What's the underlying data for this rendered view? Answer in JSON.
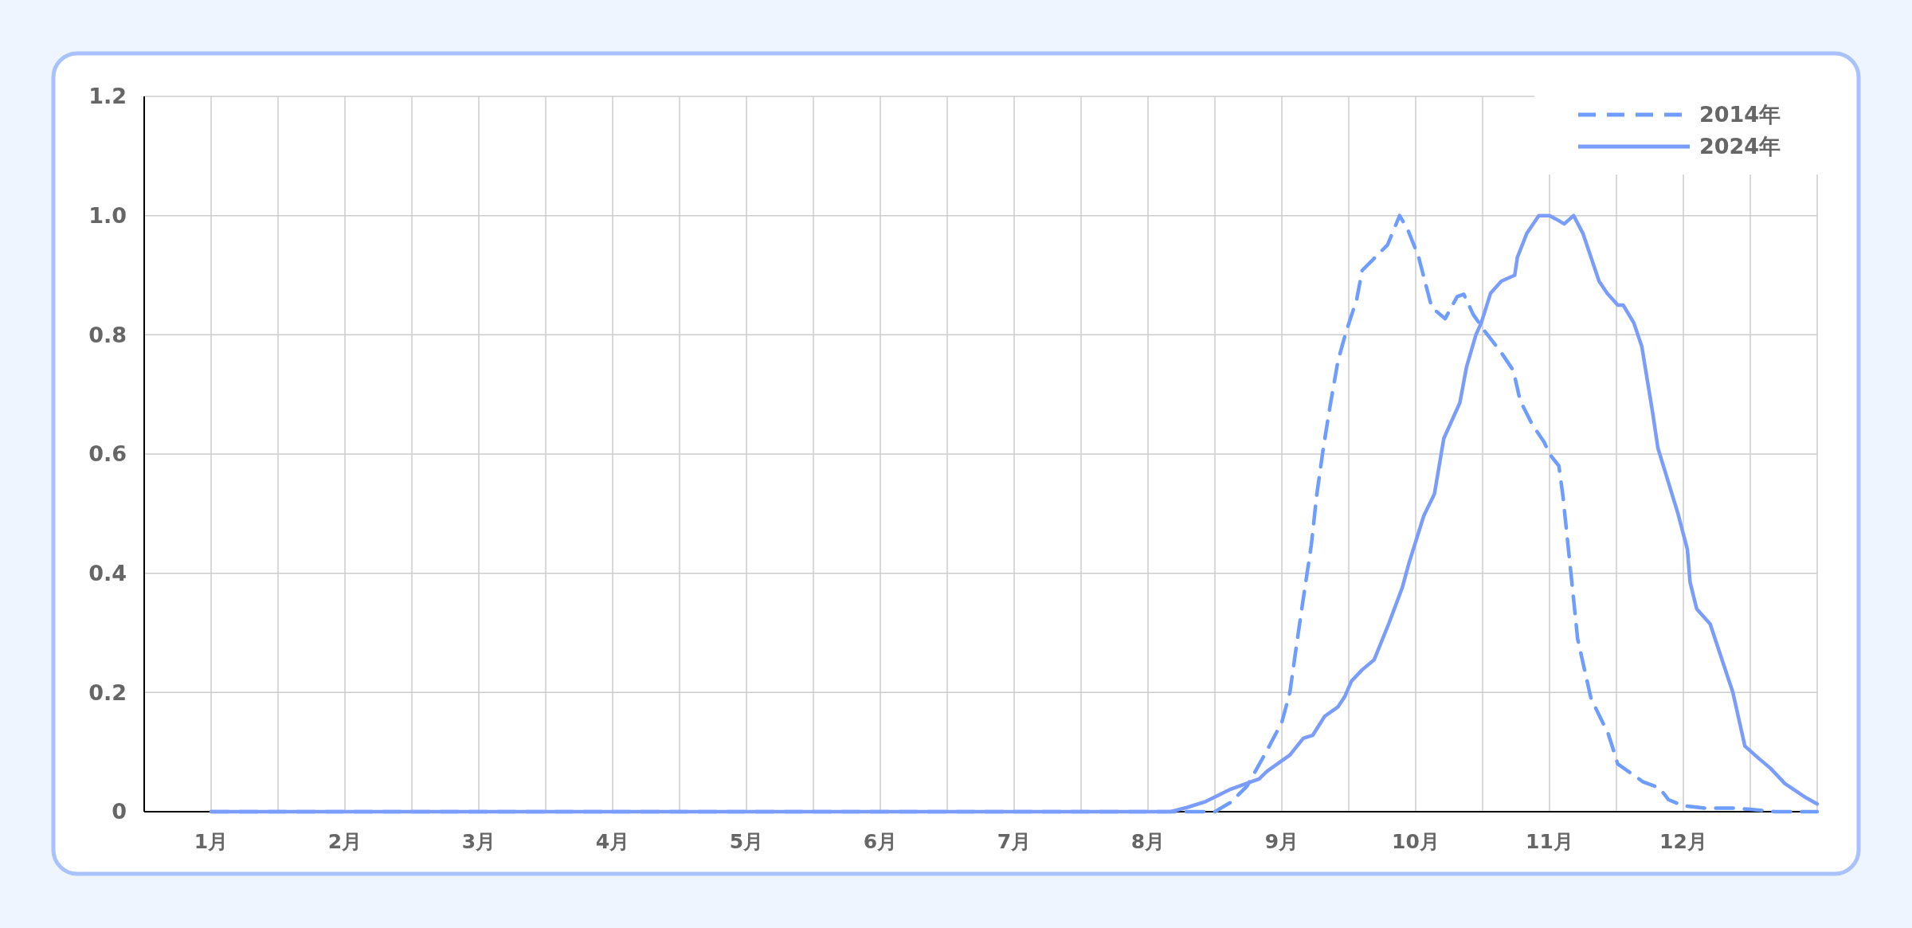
{
  "chart_data": {
    "type": "line",
    "xlim": [
      0.5,
      13
    ],
    "ylim": [
      0,
      1.2
    ],
    "xticks": [
      {
        "value": 1,
        "label": "1月"
      },
      {
        "value": 1.5,
        "label": null
      },
      {
        "value": 2,
        "label": "2月"
      },
      {
        "value": 2.5,
        "label": null
      },
      {
        "value": 3,
        "label": "3月"
      },
      {
        "value": 3.5,
        "label": null
      },
      {
        "value": 4,
        "label": "4月"
      },
      {
        "value": 4.5,
        "label": null
      },
      {
        "value": 5,
        "label": "5月"
      },
      {
        "value": 5.5,
        "label": null
      },
      {
        "value": 6,
        "label": "6月"
      },
      {
        "value": 6.5,
        "label": null
      },
      {
        "value": 7,
        "label": "7月"
      },
      {
        "value": 7.5,
        "label": null
      },
      {
        "value": 8,
        "label": "8月"
      },
      {
        "value": 8.5,
        "label": null
      },
      {
        "value": 9,
        "label": "9月"
      },
      {
        "value": 9.5,
        "label": null
      },
      {
        "value": 10,
        "label": "10月"
      },
      {
        "value": 10.5,
        "label": null
      },
      {
        "value": 11,
        "label": "11月"
      },
      {
        "value": 11.5,
        "label": null
      },
      {
        "value": 12,
        "label": "12月"
      },
      {
        "value": 12.5,
        "label": null
      },
      {
        "value": 13,
        "label": null
      }
    ],
    "yticks": [
      0,
      0.2,
      0.4,
      0.6,
      0.8,
      {
        "value": 1,
        "label": "1.0"
      },
      1.2
    ],
    "grid": true,
    "legend": "top right",
    "marker": "none",
    "series": [
      {
        "name": "2014年",
        "color": "#6e9cff",
        "line_style": "dashed",
        "x": [
          1,
          8.5,
          8.62,
          8.74,
          8.88,
          9.0,
          9.06,
          9.11,
          9.16,
          9.22,
          9.26,
          9.31,
          9.36,
          9.42,
          9.48,
          9.56,
          9.6,
          9.68,
          9.79,
          9.88,
          9.94,
          10.02,
          10.12,
          10.22,
          10.31,
          10.36,
          10.43,
          10.52,
          10.64,
          10.73,
          10.78,
          10.87,
          10.96,
          11.0,
          11.07,
          11.1,
          11.16,
          11.21,
          11.31,
          11.44,
          11.51,
          11.7,
          11.82,
          11.89,
          12.0,
          12.16,
          12.37,
          12.5,
          12.69,
          13.0
        ],
        "values": [
          0,
          0,
          0.016,
          0.043,
          0.099,
          0.15,
          0.2,
          0.28,
          0.357,
          0.447,
          0.53,
          0.61,
          0.68,
          0.757,
          0.805,
          0.86,
          0.908,
          0.926,
          0.951,
          1.0,
          0.977,
          0.932,
          0.846,
          0.827,
          0.864,
          0.868,
          0.834,
          0.805,
          0.77,
          0.74,
          0.69,
          0.65,
          0.62,
          0.6,
          0.58,
          0.53,
          0.4,
          0.29,
          0.19,
          0.13,
          0.08,
          0.05,
          0.04,
          0.02,
          0.01,
          0.006,
          0.006,
          0.004,
          0,
          0
        ]
      },
      {
        "name": "2024年",
        "color": "#7a9dfb",
        "line_style": "solid",
        "x": [
          1,
          8.17,
          8.29,
          8.43,
          8.62,
          8.83,
          8.89,
          9.06,
          9.16,
          9.23,
          9.32,
          9.42,
          9.47,
          9.52,
          9.6,
          9.69,
          9.8,
          9.9,
          9.95,
          10.06,
          10.14,
          10.21,
          10.33,
          10.38,
          10.45,
          10.49,
          10.56,
          10.64,
          10.74,
          10.76,
          10.83,
          10.92,
          11.0,
          11.05,
          11.11,
          11.18,
          11.25,
          11.31,
          11.37,
          11.43,
          11.51,
          11.55,
          11.63,
          11.69,
          11.77,
          11.81,
          11.96,
          12.03,
          12.05,
          12.1,
          12.2,
          12.37,
          12.46,
          12.56,
          12.65,
          12.76,
          12.84,
          12.92,
          13.0
        ],
        "values": [
          0,
          0,
          0.007,
          0.017,
          0.038,
          0.055,
          0.068,
          0.095,
          0.123,
          0.128,
          0.16,
          0.176,
          0.193,
          0.219,
          0.238,
          0.255,
          0.316,
          0.376,
          0.417,
          0.496,
          0.533,
          0.626,
          0.686,
          0.746,
          0.8,
          0.82,
          0.87,
          0.89,
          0.9,
          0.93,
          0.97,
          1.0,
          1.0,
          0.994,
          0.986,
          1.0,
          0.97,
          0.93,
          0.89,
          0.87,
          0.85,
          0.85,
          0.82,
          0.78,
          0.67,
          0.61,
          0.5,
          0.44,
          0.385,
          0.34,
          0.315,
          0.2,
          0.11,
          0.09,
          0.073,
          0.047,
          0.035,
          0.023,
          0.013
        ]
      }
    ]
  }
}
